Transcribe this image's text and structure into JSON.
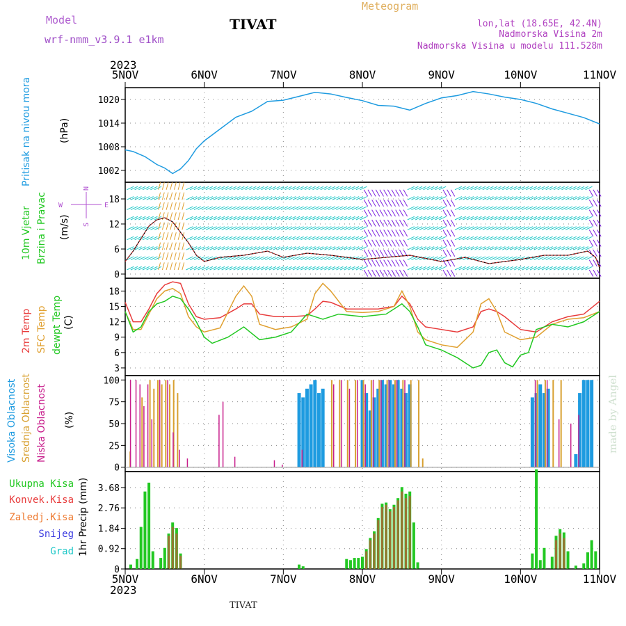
{
  "header": {
    "model_label": "Model",
    "model_name": "wrf-nmm_v3.9.1  e1km",
    "title": "TIVAT",
    "meteogram_label": "Meteogram",
    "coords": "lon,lat (18.65E, 42.4N)",
    "height": "Nadmorska Visina 2m",
    "model_height": "Nadmorska Visina u modelu 111.528m",
    "year_top": "2023",
    "year_bottom": "2023",
    "footer": "TIVAT",
    "watermark": "made by Angel"
  },
  "colors": {
    "pressure": "#1e9be0",
    "temp2m": "#e83c3c",
    "sfc": "#e0a030",
    "dewpt": "#22c822",
    "high_cloud": "#1e9be0",
    "mid_cloud": "#d8a030",
    "low_cloud": "#c81e8c",
    "total_rain": "#22c822",
    "conv_rain": "#e83c3c",
    "frozen": "#ee7a30",
    "snow": "#3c3ce0",
    "hail": "#20c8c8",
    "wind_barb": "#20c8c8",
    "wind_purple": "#7a20e0",
    "wind_speed": "#e83c3c"
  },
  "chart_data": [
    {
      "type": "line",
      "panel": "pressure",
      "x_ticks": [
        "5NOV",
        "6NOV",
        "7NOV",
        "8NOV",
        "9NOV",
        "10NOV",
        "11NOV"
      ],
      "ylabel": "(hPa)",
      "side_label": "Pritisak na nivou mora",
      "ylim": [
        999,
        1023
      ],
      "yticks": [
        "1002",
        "1008",
        "1014",
        "1020"
      ],
      "series": [
        {
          "x": [
            0,
            0.1,
            0.25,
            0.4,
            0.5,
            0.6,
            0.7,
            0.8,
            0.9,
            1.0,
            1.2,
            1.4,
            1.6,
            1.8,
            2.0,
            2.2,
            2.4,
            2.6,
            2.8,
            3.0,
            3.2,
            3.4,
            3.6,
            3.8,
            4.0,
            4.2,
            4.4,
            4.6,
            4.8,
            5.0,
            5.2,
            5.4,
            5.6,
            5.8,
            6.0
          ],
          "values": [
            1007.2,
            1006.8,
            1005.5,
            1003.5,
            1002.6,
            1001.2,
            1002.4,
            1004.5,
            1007.5,
            1009.5,
            1012.5,
            1015.5,
            1017.0,
            1019.5,
            1019.8,
            1020.8,
            1021.8,
            1021.4,
            1020.5,
            1019.7,
            1018.5,
            1018.3,
            1017.3,
            1019.0,
            1020.4,
            1021.0,
            1022.0,
            1021.4,
            1020.6,
            1020.0,
            1019.0,
            1017.6,
            1016.5,
            1015.4,
            1013.8
          ]
        }
      ]
    },
    {
      "type": "scatter",
      "panel": "wind",
      "side_label_1": "10m Vjetar",
      "side_label_2": "Brzina i Pravac",
      "ylabel": "(m/s)",
      "ylim": [
        -1,
        22
      ],
      "yticks": [
        "0",
        "6",
        "12",
        "18"
      ],
      "compass": {
        "n": "N",
        "s": "S",
        "e": "E",
        "w": "W"
      },
      "speed_x": [
        0,
        0.1,
        0.2,
        0.3,
        0.4,
        0.5,
        0.6,
        0.7,
        0.8,
        0.9,
        1.0,
        1.2,
        1.5,
        1.8,
        2.0,
        2.3,
        2.6,
        3.0,
        3.3,
        3.6,
        4.0,
        4.3,
        4.6,
        5.0,
        5.3,
        5.6,
        5.85,
        5.95,
        6.0
      ],
      "speed": [
        3.0,
        5.5,
        8.5,
        11.5,
        13.0,
        13.5,
        12.5,
        10.0,
        7.5,
        4.5,
        3.0,
        4.0,
        4.5,
        5.5,
        4.0,
        5.0,
        4.5,
        3.5,
        4.0,
        4.5,
        3.0,
        4.0,
        2.5,
        3.5,
        4.5,
        4.5,
        5.5,
        4.0,
        1.5
      ]
    },
    {
      "type": "line",
      "panel": "temperature",
      "side_label_1": "2m Temp",
      "side_label_2": "SFC Temp",
      "side_label_3": "dewpt Temp",
      "ylabel": "(C)",
      "ylim": [
        1.5,
        20.5
      ],
      "yticks": [
        "3",
        "6",
        "9",
        "12",
        "15",
        "18"
      ],
      "series": [
        {
          "name": "2m Temp",
          "x": [
            0,
            0.1,
            0.2,
            0.3,
            0.4,
            0.5,
            0.6,
            0.7,
            0.8,
            0.9,
            1.0,
            1.2,
            1.4,
            1.5,
            1.6,
            1.7,
            1.9,
            2.1,
            2.3,
            2.4,
            2.5,
            2.6,
            2.8,
            3.0,
            3.2,
            3.4,
            3.5,
            3.6,
            3.7,
            3.8,
            4.0,
            4.2,
            4.4,
            4.5,
            4.6,
            4.7,
            4.8,
            5.0,
            5.2,
            5.4,
            5.6,
            5.8,
            6.0
          ],
          "values": [
            15.8,
            12.0,
            12.0,
            14.5,
            17.5,
            19.2,
            19.8,
            19.5,
            15.5,
            13.0,
            12.5,
            12.8,
            14.5,
            15.5,
            15.5,
            13.5,
            13.0,
            13.0,
            13.2,
            14.5,
            16.0,
            15.8,
            14.5,
            14.5,
            14.5,
            15.0,
            17.0,
            15.5,
            12.5,
            11.0,
            10.5,
            10.0,
            11.0,
            14.0,
            14.5,
            14.0,
            13.0,
            10.5,
            10.0,
            12.0,
            13.0,
            13.5,
            16.0
          ]
        },
        {
          "name": "SFC Temp",
          "x": [
            0,
            0.1,
            0.2,
            0.3,
            0.4,
            0.5,
            0.6,
            0.7,
            0.8,
            0.9,
            1.0,
            1.2,
            1.4,
            1.5,
            1.6,
            1.7,
            1.9,
            2.1,
            2.3,
            2.4,
            2.5,
            2.6,
            2.8,
            3.0,
            3.2,
            3.4,
            3.5,
            3.6,
            3.7,
            3.8,
            4.0,
            4.2,
            4.4,
            4.5,
            4.6,
            4.7,
            4.8,
            5.0,
            5.2,
            5.4,
            5.6,
            5.8,
            6.0
          ],
          "values": [
            14.0,
            10.5,
            10.5,
            13.5,
            16.5,
            18.0,
            18.5,
            17.5,
            13.0,
            11.0,
            10.0,
            10.8,
            17.0,
            19.0,
            17.0,
            11.5,
            10.5,
            11.0,
            12.5,
            17.5,
            19.5,
            18.0,
            14.0,
            13.8,
            14.0,
            15.0,
            18.0,
            15.0,
            10.0,
            8.5,
            7.5,
            7.0,
            10.0,
            15.5,
            16.5,
            14.0,
            10.0,
            8.5,
            9.0,
            11.5,
            12.5,
            12.8,
            14.0
          ]
        },
        {
          "name": "dewpt Temp",
          "x": [
            0,
            0.1,
            0.2,
            0.3,
            0.4,
            0.5,
            0.6,
            0.7,
            0.8,
            0.9,
            1.0,
            1.1,
            1.3,
            1.5,
            1.7,
            1.9,
            2.1,
            2.3,
            2.5,
            2.7,
            3.0,
            3.3,
            3.5,
            3.6,
            3.7,
            3.8,
            4.0,
            4.2,
            4.4,
            4.5,
            4.6,
            4.7,
            4.8,
            4.9,
            5.0,
            5.1,
            5.2,
            5.4,
            5.6,
            5.8,
            6.0
          ],
          "values": [
            14.0,
            10.0,
            11.0,
            14.0,
            15.5,
            16.0,
            17.0,
            16.5,
            14.5,
            12.0,
            9.0,
            7.8,
            9.0,
            11.0,
            8.5,
            9.0,
            10.0,
            13.5,
            12.5,
            13.5,
            13.0,
            13.5,
            15.5,
            14.0,
            11.0,
            7.5,
            6.5,
            5.0,
            3.0,
            3.5,
            6.0,
            6.5,
            4.0,
            3.2,
            5.5,
            6.0,
            10.5,
            11.5,
            11.0,
            12.0,
            14.0
          ]
        }
      ]
    },
    {
      "type": "bar",
      "panel": "cloud",
      "side_label_1": "Visoka Oblacnost",
      "side_label_2": "Srednja Oblacnost",
      "side_label_3": "Niska Oblacnost",
      "ylabel": "(%)",
      "ylim": [
        -5,
        105
      ],
      "yticks": [
        "0",
        "25",
        "50",
        "75",
        "100"
      ],
      "series": [
        {
          "name": "Visoka Oblacnost",
          "x": [
            2.2,
            2.25,
            2.3,
            2.35,
            2.4,
            2.45,
            2.5,
            3.0,
            3.05,
            3.1,
            3.15,
            3.2,
            3.25,
            3.3,
            3.35,
            3.4,
            3.45,
            3.5,
            3.55,
            3.6,
            5.15,
            5.2,
            5.25,
            5.3,
            5.35,
            5.7,
            5.75,
            5.8,
            5.85,
            5.9
          ],
          "values": [
            85,
            80,
            90,
            95,
            100,
            85,
            90,
            100,
            85,
            65,
            80,
            90,
            100,
            95,
            100,
            95,
            100,
            90,
            85,
            95,
            80,
            85,
            95,
            85,
            90,
            15,
            85,
            100,
            100,
            100
          ]
        },
        {
          "name": "Srednja Oblacnost",
          "x": [
            0.05,
            0.2,
            0.3,
            0.35,
            0.4,
            0.45,
            0.5,
            0.55,
            0.6,
            0.65,
            2.6,
            2.7,
            2.8,
            2.9,
            3.0,
            3.1,
            3.2,
            3.3,
            3.4,
            3.5,
            3.6,
            3.7,
            3.75,
            5.2,
            5.3,
            5.4,
            5.5
          ],
          "values": [
            18,
            80,
            100,
            90,
            100,
            95,
            100,
            95,
            100,
            85,
            100,
            100,
            100,
            100,
            100,
            100,
            100,
            100,
            100,
            100,
            100,
            100,
            10,
            100,
            100,
            100,
            100
          ]
        },
        {
          "name": "Niska Oblacnost",
          "x": [
            0.08,
            0.15,
            0.2,
            0.25,
            0.3,
            0.35,
            0.45,
            0.55,
            0.62,
            0.7,
            0.8,
            1.2,
            1.25,
            1.4,
            1.9,
            2.0,
            2.25,
            2.65,
            2.75,
            2.85,
            2.95,
            3.05,
            3.15,
            3.25,
            3.35,
            3.45,
            3.55,
            5.2,
            5.35,
            5.5,
            5.65,
            5.75
          ],
          "values": [
            100,
            100,
            95,
            70,
            95,
            55,
            100,
            100,
            40,
            20,
            10,
            60,
            75,
            12,
            8,
            3,
            20,
            95,
            100,
            90,
            100,
            95,
            100,
            100,
            100,
            100,
            100,
            100,
            100,
            55,
            50,
            60
          ]
        }
      ]
    },
    {
      "type": "bar",
      "panel": "precip",
      "side_label_1": "Ukupna Kisa",
      "side_label_2": "Konvek.Kisa",
      "side_label_3": "Zaledj.Kisa",
      "side_label_4": "Snijeg",
      "side_label_5": "Grad",
      "ylabel": "1hr Precip (mm)",
      "ylim": [
        0,
        4.4
      ],
      "yticks": [
        "0",
        "0.92",
        "1.84",
        "2.76",
        "3.68"
      ],
      "series": [
        {
          "name": "Ukupna Kisa",
          "x": [
            0.07,
            0.15,
            0.2,
            0.25,
            0.3,
            0.35,
            0.45,
            0.5,
            0.55,
            0.6,
            0.65,
            0.7,
            2.2,
            2.25,
            2.8,
            2.85,
            2.9,
            2.95,
            3.0,
            3.05,
            3.1,
            3.15,
            3.2,
            3.25,
            3.3,
            3.35,
            3.4,
            3.45,
            3.5,
            3.55,
            3.6,
            3.65,
            3.7,
            5.15,
            5.2,
            5.25,
            5.3,
            5.4,
            5.45,
            5.5,
            5.55,
            5.6,
            5.7,
            5.8,
            5.85,
            5.9,
            5.95
          ],
          "values": [
            0.2,
            0.45,
            1.9,
            3.5,
            3.9,
            0.8,
            0.5,
            0.95,
            1.6,
            2.1,
            1.85,
            0.7,
            0.2,
            0.12,
            0.45,
            0.4,
            0.5,
            0.5,
            0.55,
            0.9,
            1.4,
            1.7,
            2.3,
            2.95,
            3.0,
            2.7,
            2.9,
            3.2,
            3.7,
            3.4,
            3.5,
            2.1,
            0.3,
            0.7,
            4.5,
            0.4,
            0.95,
            0.55,
            1.5,
            1.8,
            1.65,
            0.8,
            0.15,
            0.25,
            0.75,
            1.3,
            0.8
          ]
        },
        {
          "name": "Konvek.Kisa",
          "x": [
            0.55,
            0.6,
            0.65,
            0.7,
            3.05,
            3.1,
            3.15,
            3.2,
            3.25,
            3.3,
            3.35,
            3.4,
            3.45,
            3.5,
            3.55,
            3.6,
            5.45,
            5.5,
            5.55
          ],
          "values": [
            1.5,
            1.9,
            1.6,
            0.6,
            0.8,
            1.3,
            1.6,
            2.2,
            2.8,
            2.9,
            2.6,
            2.8,
            3.1,
            3.5,
            3.2,
            3.3,
            1.3,
            1.6,
            1.4
          ]
        }
      ]
    }
  ]
}
